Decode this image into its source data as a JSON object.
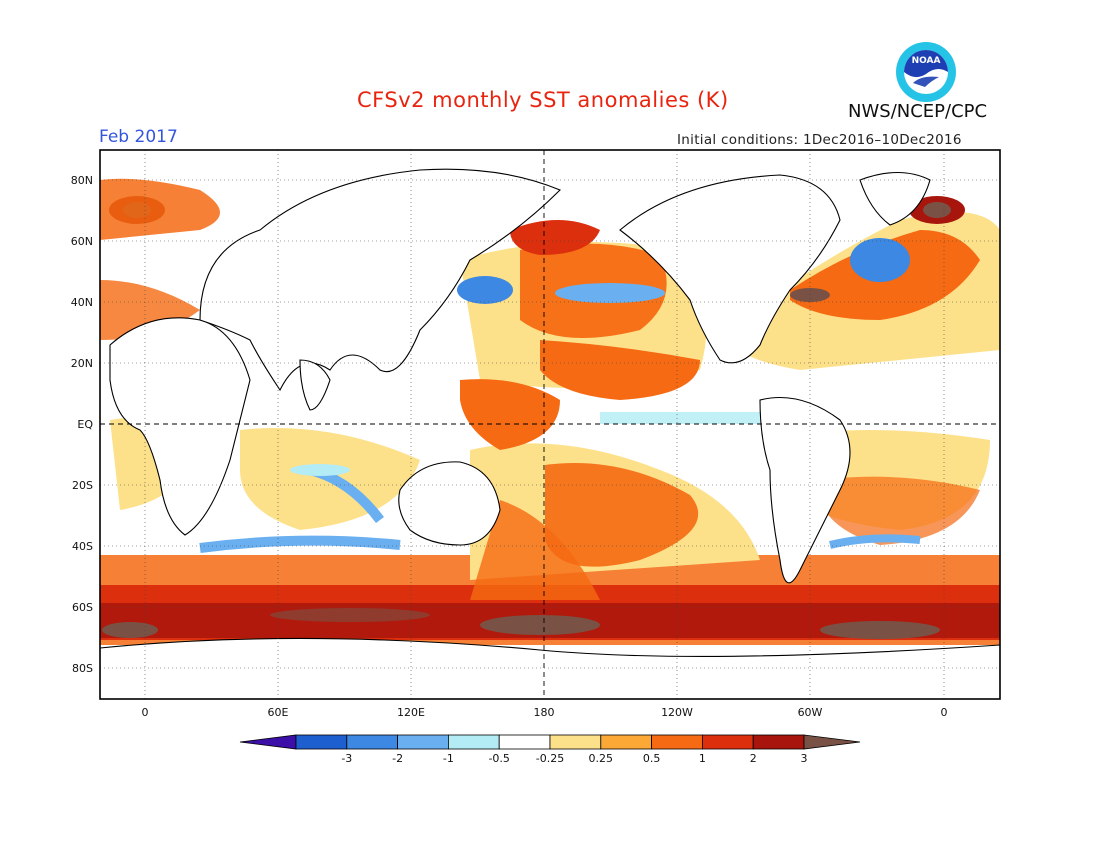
{
  "header": {
    "title": "CFSv2 monthly SST anomalies (K)",
    "agency": "NWS/NCEP/CPC",
    "month": "Feb 2017",
    "initial_conditions": "Initial conditions: 1Dec2016–10Dec2016",
    "logo_text": "NOAA"
  },
  "map": {
    "lat_labels": [
      "80N",
      "60N",
      "40N",
      "20N",
      "EQ",
      "20S",
      "40S",
      "60S",
      "80S"
    ],
    "lon_labels": [
      "0",
      "60E",
      "120E",
      "180",
      "120W",
      "60W",
      "0"
    ],
    "dateline_and_equator_dashed": true,
    "grid": "dotted"
  },
  "colorbar": {
    "labels": [
      "-3",
      "-2",
      "-1",
      "-0.5",
      "-0.25",
      "0.25",
      "0.5",
      "1",
      "2",
      "3"
    ],
    "colors": [
      "#3b0fa8",
      "#1e5fcf",
      "#3c88e3",
      "#6ab0f0",
      "#b3ecf5",
      "#ffffff",
      "#fde18a",
      "#fca836",
      "#f56a12",
      "#db2f0e",
      "#a8150c",
      "#7a5245"
    ]
  }
}
